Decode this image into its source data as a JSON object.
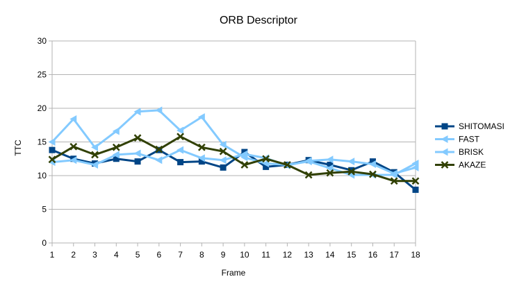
{
  "chart_data": {
    "type": "line",
    "title": "ORB Descriptor",
    "xlabel": "Frame",
    "ylabel": "TTC",
    "ylim": [
      0,
      30
    ],
    "yticks": [
      0,
      5,
      10,
      15,
      20,
      25,
      30
    ],
    "x": [
      1,
      2,
      3,
      4,
      5,
      6,
      7,
      8,
      9,
      10,
      11,
      12,
      13,
      14,
      15,
      16,
      17,
      18
    ],
    "grid": true,
    "legend_position": "right",
    "series": [
      {
        "name": "SHITOMASI",
        "color": "#004586",
        "marker": "square",
        "values": [
          13.8,
          12.5,
          11.8,
          12.5,
          12.1,
          13.8,
          12.0,
          12.1,
          11.2,
          13.5,
          11.3,
          11.6,
          12.3,
          11.6,
          10.8,
          12.1,
          10.5,
          7.9
        ]
      },
      {
        "name": "FAST",
        "color": "#83caff",
        "marker": "triangle-left",
        "values": [
          12.0,
          12.3,
          11.6,
          13.1,
          13.3,
          12.3,
          13.8,
          12.6,
          12.3,
          13.2,
          12.6,
          11.5,
          12.2,
          12.4,
          12.1,
          11.7,
          10.3,
          11.2
        ]
      },
      {
        "name": "BRISK",
        "color": "#83caff",
        "marker": "triangle-left",
        "values": [
          15.0,
          18.4,
          14.2,
          16.6,
          19.5,
          19.7,
          16.7,
          18.7,
          14.6,
          12.7,
          11.8,
          11.6,
          12.1,
          11.1,
          10.1,
          10.1,
          10.1,
          11.8
        ]
      },
      {
        "name": "AKAZE",
        "color": "#314004",
        "marker": "x",
        "values": [
          12.4,
          14.3,
          13.1,
          14.2,
          15.6,
          13.9,
          15.8,
          14.2,
          13.6,
          11.6,
          12.5,
          11.6,
          10.1,
          10.4,
          10.6,
          10.2,
          9.2,
          9.2
        ]
      }
    ]
  }
}
